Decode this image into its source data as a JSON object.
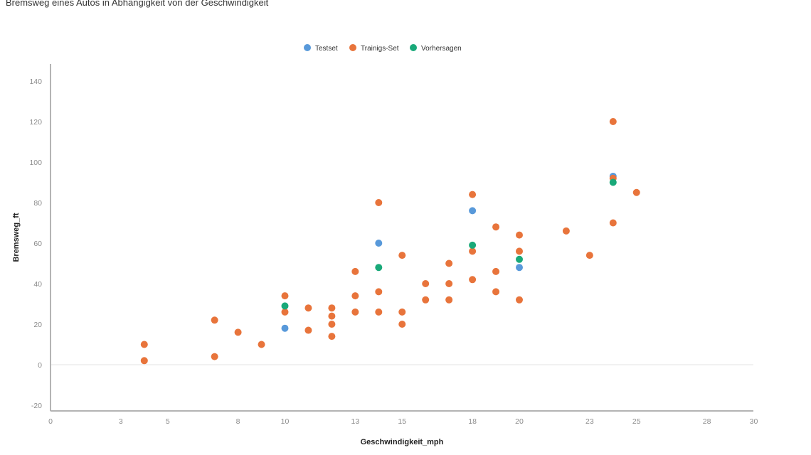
{
  "chart_data": {
    "type": "scatter",
    "title": "Bremsweg eines Autos in Abhängigkeit von der Geschwindigkeit",
    "xlabel": "Geschwindigkeit_mph",
    "ylabel": "Bremsweg_ft",
    "xlim": [
      0,
      30
    ],
    "ylim": [
      -25,
      148
    ],
    "xticks": [
      0,
      3,
      5,
      8,
      10,
      13,
      15,
      18,
      20,
      23,
      25,
      28,
      30
    ],
    "yticks": [
      -20,
      0,
      20,
      40,
      60,
      80,
      100,
      120,
      140
    ],
    "grid": "none (zero line only)",
    "legend_position": "top-center",
    "series": [
      {
        "name": "Testset",
        "color": "#5899DA",
        "points": [
          [
            10,
            18
          ],
          [
            14,
            60
          ],
          [
            18,
            76
          ],
          [
            20,
            48
          ],
          [
            24,
            93
          ]
        ]
      },
      {
        "name": "Trainigs-Set",
        "color": "#E8743B",
        "points": [
          [
            4,
            2
          ],
          [
            4,
            10
          ],
          [
            7,
            4
          ],
          [
            7,
            22
          ],
          [
            8,
            16
          ],
          [
            9,
            10
          ],
          [
            10,
            26
          ],
          [
            10,
            34
          ],
          [
            11,
            17
          ],
          [
            11,
            28
          ],
          [
            12,
            14
          ],
          [
            12,
            20
          ],
          [
            12,
            24
          ],
          [
            12,
            28
          ],
          [
            13,
            26
          ],
          [
            13,
            34
          ],
          [
            13,
            46
          ],
          [
            14,
            26
          ],
          [
            14,
            36
          ],
          [
            14,
            80
          ],
          [
            15,
            20
          ],
          [
            15,
            26
          ],
          [
            15,
            54
          ],
          [
            16,
            32
          ],
          [
            16,
            40
          ],
          [
            17,
            32
          ],
          [
            17,
            40
          ],
          [
            17,
            50
          ],
          [
            18,
            42
          ],
          [
            18,
            56
          ],
          [
            18,
            84
          ],
          [
            19,
            36
          ],
          [
            19,
            46
          ],
          [
            19,
            68
          ],
          [
            20,
            32
          ],
          [
            20,
            56
          ],
          [
            20,
            64
          ],
          [
            22,
            66
          ],
          [
            23,
            54
          ],
          [
            24,
            70
          ],
          [
            24,
            92
          ],
          [
            24,
            120
          ],
          [
            25,
            85
          ]
        ]
      },
      {
        "name": "Vorhersagen",
        "color": "#19A979",
        "points": [
          [
            10,
            29
          ],
          [
            14,
            48
          ],
          [
            18,
            59
          ],
          [
            20,
            52
          ],
          [
            24,
            90
          ]
        ]
      }
    ]
  }
}
